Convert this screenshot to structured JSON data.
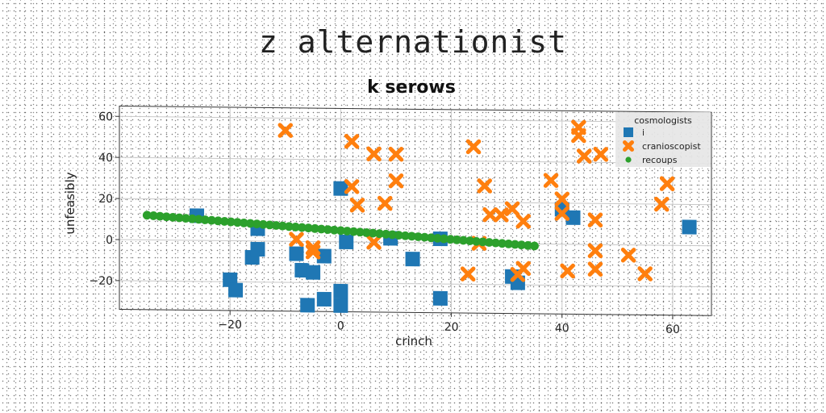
{
  "page_title": "z alternationist",
  "chart_data": {
    "type": "scatter",
    "title": "k serows",
    "xlabel": "crinch",
    "ylabel": "unfeasibly",
    "xlim": [
      -40,
      67
    ],
    "ylim": [
      -34,
      65
    ],
    "xticks": [
      -20,
      0,
      20,
      40,
      60
    ],
    "yticks": [
      -20,
      0,
      20,
      40,
      60
    ],
    "xtick_labels": [
      "−20",
      "0",
      "20",
      "40",
      "60"
    ],
    "ytick_labels": [
      "−20",
      "0",
      "20",
      "40",
      "60"
    ],
    "grid": true,
    "legend": {
      "title": "cosmologists",
      "placement": "top-right",
      "entries": [
        "i",
        "cranioscopist",
        "recoups"
      ]
    },
    "series": [
      {
        "name": "i",
        "marker": "square",
        "color": "#1f77b4",
        "points": [
          [
            -26,
            12
          ],
          [
            -20,
            -19
          ],
          [
            -19,
            -24
          ],
          [
            -16,
            -8
          ],
          [
            -15,
            6
          ],
          [
            -15,
            -4
          ],
          [
            -8,
            -6
          ],
          [
            -7,
            -14
          ],
          [
            -6,
            -31
          ],
          [
            -5,
            -15
          ],
          [
            -3,
            -7
          ],
          [
            -3,
            -28
          ],
          [
            0,
            26
          ],
          [
            0,
            -31
          ],
          [
            0,
            -24
          ],
          [
            1,
            0
          ],
          [
            9,
            2
          ],
          [
            13,
            -8
          ],
          [
            18,
            2
          ],
          [
            18,
            -27
          ],
          [
            31,
            -16
          ],
          [
            32,
            -19
          ],
          [
            40,
            17
          ],
          [
            42,
            13
          ],
          [
            63,
            9
          ]
        ]
      },
      {
        "name": "cranioscopist",
        "marker": "x",
        "color": "#ff7f0e",
        "points": [
          [
            -10,
            54
          ],
          [
            -8,
            1
          ],
          [
            -5,
            -3
          ],
          [
            -5,
            -5
          ],
          [
            2,
            49
          ],
          [
            2,
            27
          ],
          [
            3,
            18
          ],
          [
            6,
            43
          ],
          [
            6,
            0
          ],
          [
            8,
            19
          ],
          [
            10,
            43
          ],
          [
            10,
            30
          ],
          [
            23,
            -15
          ],
          [
            24,
            47
          ],
          [
            25,
            0
          ],
          [
            26,
            28
          ],
          [
            27,
            14
          ],
          [
            29,
            14
          ],
          [
            31,
            17
          ],
          [
            32,
            -15
          ],
          [
            33,
            -12
          ],
          [
            33,
            11
          ],
          [
            38,
            31
          ],
          [
            40,
            22
          ],
          [
            40,
            15
          ],
          [
            41,
            -13
          ],
          [
            43,
            57
          ],
          [
            43,
            53
          ],
          [
            44,
            43
          ],
          [
            46,
            12
          ],
          [
            46,
            -3
          ],
          [
            46,
            -12
          ],
          [
            47,
            44
          ],
          [
            52,
            -5
          ],
          [
            55,
            -14
          ],
          [
            58,
            20
          ],
          [
            59,
            30
          ]
        ]
      },
      {
        "name": "recoups",
        "marker": "circle",
        "color": "#2ca02c",
        "x_start": -35,
        "x_end": 35,
        "y_start": 12,
        "y_end": -1,
        "count": 61
      }
    ]
  }
}
